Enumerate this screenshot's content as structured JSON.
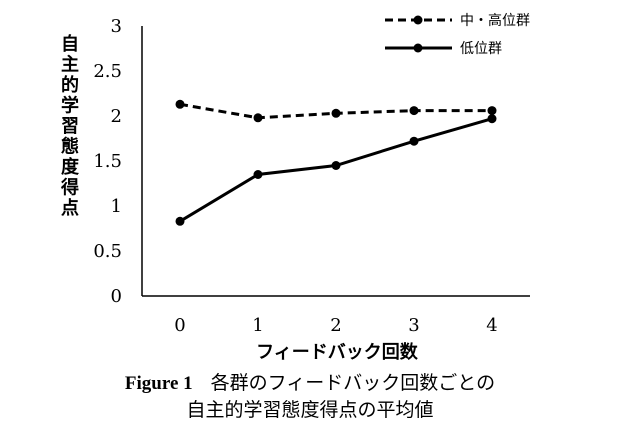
{
  "chart_data": {
    "type": "line",
    "x": [
      0,
      1,
      2,
      3,
      4
    ],
    "xlabel": "フィードバック回数",
    "ylabel": "自主的学習態度得点",
    "ylim": [
      0,
      3
    ],
    "yticks": [
      "0",
      "0.5",
      "1",
      "1.5",
      "2",
      "2.5",
      "3"
    ],
    "xticks": [
      "0",
      "1",
      "2",
      "3",
      "4"
    ],
    "grid": false,
    "legend_position": "top-right",
    "series": [
      {
        "name": "中・高位群",
        "style": "dashed",
        "values": [
          2.13,
          1.98,
          2.03,
          2.06,
          2.06
        ]
      },
      {
        "name": "低位群",
        "style": "solid",
        "values": [
          0.83,
          1.35,
          1.45,
          1.72,
          1.97
        ]
      }
    ]
  },
  "caption": {
    "figure_label": "Figure 1",
    "line1": "各群のフィードバック回数ごとの",
    "line2": "自主的学習態度得点の平均値"
  },
  "colors": {
    "line": "#000000"
  }
}
